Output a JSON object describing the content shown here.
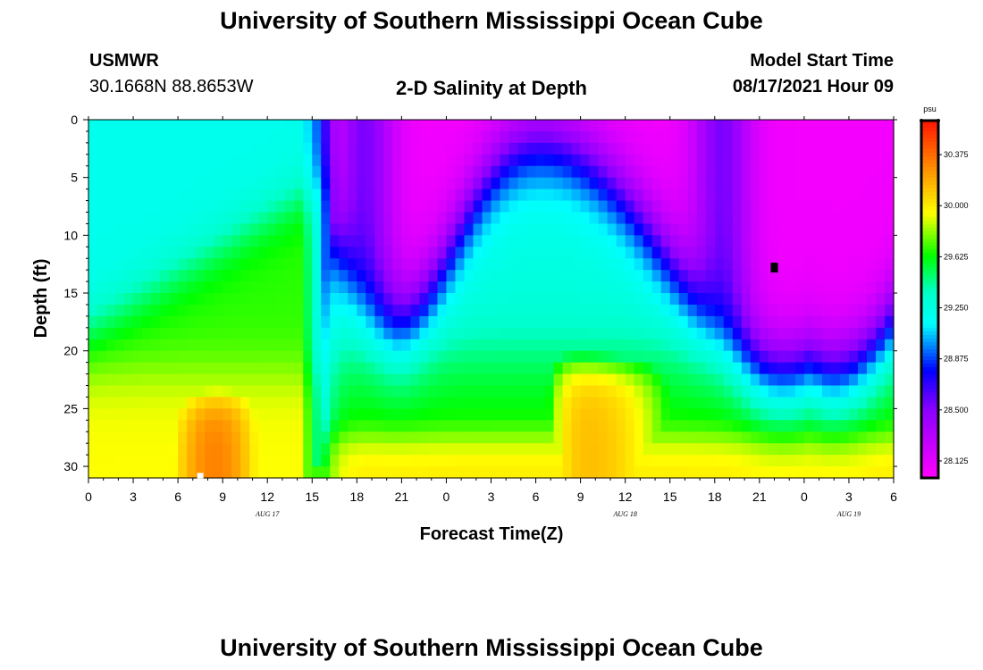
{
  "header": {
    "title_top": "University of Southern Mississippi Ocean Cube",
    "station": "USMWR",
    "coords": "30.1668N  88.8653W",
    "plot_title": "2-D Salinity at Depth",
    "model_start_label": "Model Start Time",
    "model_start_value": "08/17/2021 Hour 09",
    "title_bottom": "University of Southern Mississippi Ocean Cube"
  },
  "chart_data": {
    "type": "heatmap",
    "title": "2-D Salinity at Depth",
    "xlabel": "Forecast Time(Z)",
    "ylabel": "Depth (ft)",
    "x_hours_range": [
      0,
      54
    ],
    "y_range": [
      0,
      31
    ],
    "x_tick_labels": [
      "0",
      "3",
      "6",
      "9",
      "12",
      "15",
      "18",
      "21",
      "0",
      "3",
      "6",
      "9",
      "12",
      "15",
      "18",
      "21",
      "0",
      "3",
      "6"
    ],
    "y_tick_values": [
      0,
      5,
      10,
      15,
      20,
      25,
      30
    ],
    "y_tick_labels": [
      "0",
      "5",
      "10",
      "15",
      "20",
      "25",
      "30"
    ],
    "date_labels": [
      {
        "text": "AUG 17",
        "hour": 12
      },
      {
        "text": "AUG 18",
        "hour": 36
      },
      {
        "text": "AUG 19",
        "hour": 51
      }
    ],
    "colorbar": {
      "unit": "psu",
      "min": 28.0,
      "max": 30.625,
      "tick_values": [
        28.125,
        28.5,
        28.875,
        29.25,
        29.625,
        30.0,
        30.375
      ],
      "tick_labels": [
        "28.125",
        "28.500",
        "28.875",
        "29.250",
        "29.625",
        "30.000",
        "30.375"
      ]
    },
    "markers": [
      {
        "hour": 46,
        "depth": 12.8,
        "color": "#000000",
        "label": "min"
      },
      {
        "hour": 7.5,
        "depth": 30.8,
        "color": "#ffffff",
        "label": "max"
      }
    ]
  }
}
